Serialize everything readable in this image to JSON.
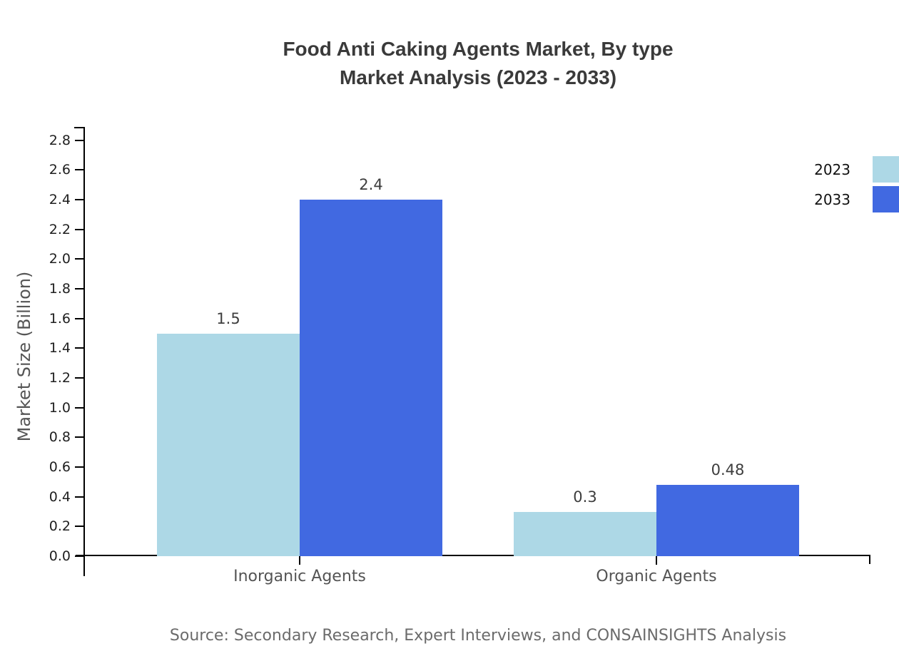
{
  "title": {
    "line1": "Food Anti Caking Agents Market, By type",
    "line2": "Market Analysis (2023 - 2033)"
  },
  "source_note": "Source: Secondary Research, Expert Interviews, and CONSAINSIGHTS Analysis",
  "chart_data": {
    "type": "bar",
    "title": "Food Anti Caking Agents Market, By type Market Analysis (2023 - 2033)",
    "categories": [
      "Inorganic Agents",
      "Organic Agents"
    ],
    "series": [
      {
        "name": "2023",
        "color": "#ADD8E6",
        "values": [
          1.5,
          0.3
        ],
        "labels": [
          "1.5",
          "0.3"
        ]
      },
      {
        "name": "2033",
        "color": "#4169E1",
        "values": [
          2.4,
          0.48
        ],
        "labels": [
          "2.4",
          "0.48"
        ]
      }
    ],
    "xlabel": "",
    "ylabel": "Market Size (Billion)",
    "ylim": [
      0,
      2.8
    ],
    "yticks": [
      "0.0",
      "0.2",
      "0.4",
      "0.6",
      "0.8",
      "1.0",
      "1.2",
      "1.4",
      "1.6",
      "1.8",
      "2.0",
      "2.2",
      "2.4",
      "2.6",
      "2.8"
    ],
    "grid": false,
    "legend": {
      "position": "top-right",
      "entries": [
        "2023",
        "2033"
      ]
    }
  },
  "colors": {
    "background": "#ffffff",
    "axis": "#000000",
    "title_text": "#3a3a3a",
    "tick_text": "#1f1f1f",
    "category_text": "#545454",
    "value_text": "#3d3d3d",
    "ylabel_text": "#555555",
    "source_text": "#6b6b6b",
    "series_2023": "#ADD8E6",
    "series_2033": "#4169E1"
  }
}
